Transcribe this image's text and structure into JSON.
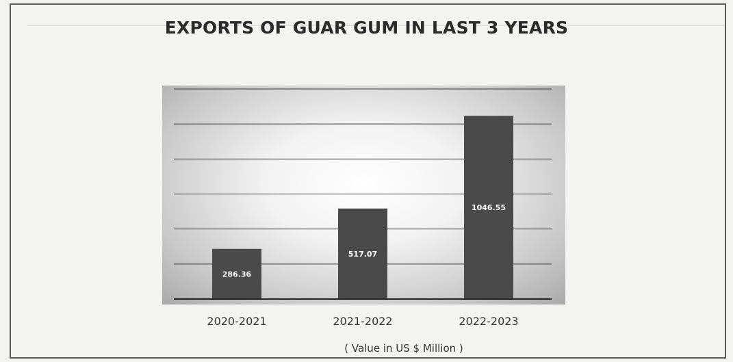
{
  "chart_data": {
    "type": "bar",
    "title": "EXPORTS OF GUAR GUM IN LAST 3 YEARS",
    "categories": [
      "2020-2021",
      "2021-2022",
      "2022-2023"
    ],
    "values": [
      286.36,
      517.07,
      1046.55
    ],
    "data_labels": [
      "286.36",
      "517.07",
      "1046.55"
    ],
    "unit_note": "( Value in US $ Million )",
    "xlabel": "",
    "ylabel": "",
    "ylim": [
      0,
      1200
    ],
    "grid": true,
    "legend": "none",
    "colors": {
      "bar": "#4a4a4a",
      "gridline": "#3a3a3a",
      "baseline": "#222222"
    }
  }
}
